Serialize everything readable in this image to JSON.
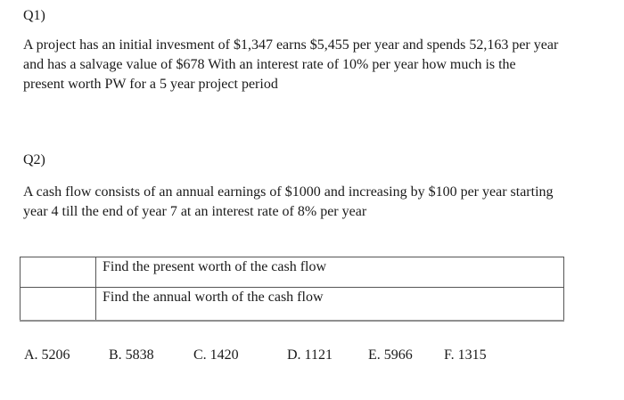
{
  "colors": {
    "background": "#ffffff",
    "text": "#1a1a1a",
    "table_border": "#555555"
  },
  "q1": {
    "label": "Q1)",
    "lines": [
      "A project has an initial invesment of $1,347 earns $5,455 per year and spends 52,163 per year",
      "and has a salvage value of $678 With an interest rate of 10% per year how much is the",
      "present worth PW for a 5 year project period"
    ]
  },
  "q2": {
    "label": "Q2)",
    "lines": [
      "A cash flow consists of an annual earnings of $1000 and increasing by $100 per year starting",
      "year 4 till the end of year 7 at an interest rate of 8% per year"
    ]
  },
  "table": {
    "rows": [
      {
        "answer": "",
        "task": "Find the present worth of the cash flow"
      },
      {
        "answer": "",
        "task": "Find the annual worth of the cash flow"
      }
    ]
  },
  "options": [
    "A. 5206",
    "B. 5838",
    "C. 1420",
    "D. 1121",
    "E. 5966",
    "F. 1315"
  ]
}
